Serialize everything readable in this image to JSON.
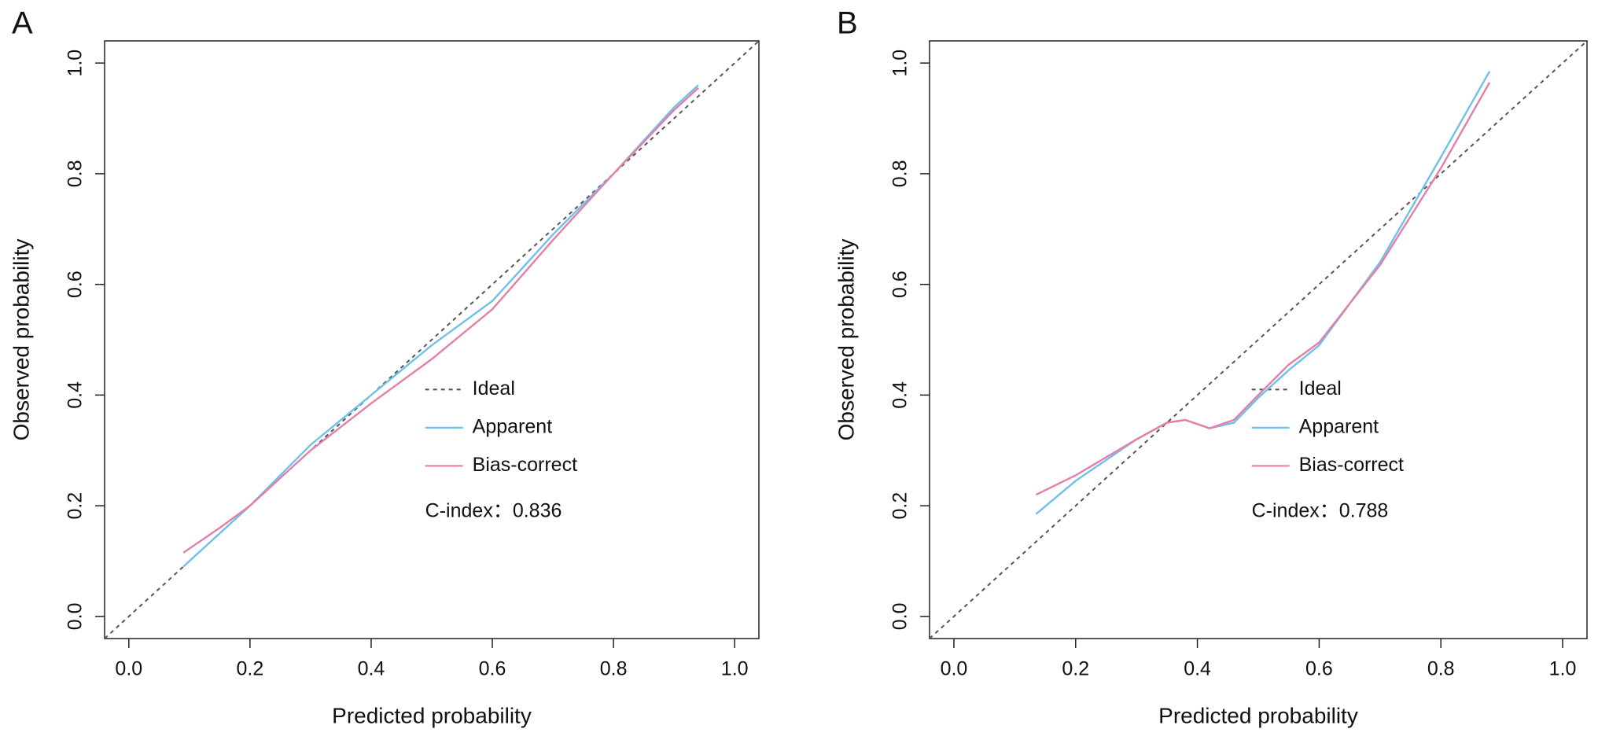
{
  "chart_data": [
    {
      "type": "line",
      "panel": "A",
      "xlabel": "Predicted probability",
      "ylabel": "Observed probability",
      "xlim": [
        -0.04,
        1.04
      ],
      "ylim": [
        -0.04,
        1.04
      ],
      "xticks": [
        {
          "value": 0,
          "label": "0.0"
        },
        0.2,
        0.4,
        0.6,
        0.8,
        {
          "value": 1,
          "label": "1.0"
        }
      ],
      "yticks": [
        {
          "value": 0,
          "label": "0.0"
        },
        0.2,
        0.4,
        0.6,
        0.8,
        {
          "value": 1,
          "label": "1.0"
        }
      ],
      "legend": "lower right",
      "annotation": "C-index：0.836",
      "series": [
        {
          "name": "Ideal",
          "color": "#555555",
          "dashed": true,
          "x": [
            -0.04,
            1.04
          ],
          "values": [
            -0.04,
            1.04
          ]
        },
        {
          "name": "Apparent",
          "color": "#6ec1ea",
          "x": [
            0.09,
            0.15,
            0.2,
            0.3,
            0.4,
            0.5,
            0.6,
            0.7,
            0.8,
            0.9,
            0.94
          ],
          "values": [
            0.09,
            0.15,
            0.2,
            0.31,
            0.4,
            0.49,
            0.57,
            0.69,
            0.8,
            0.92,
            0.96
          ]
        },
        {
          "name": "Bias-correct",
          "color": "#e57fa8",
          "x": [
            0.09,
            0.15,
            0.2,
            0.3,
            0.4,
            0.5,
            0.6,
            0.7,
            0.8,
            0.9,
            0.94
          ],
          "values": [
            0.115,
            0.16,
            0.2,
            0.3,
            0.385,
            0.465,
            0.555,
            0.68,
            0.8,
            0.915,
            0.955
          ]
        }
      ]
    },
    {
      "type": "line",
      "panel": "B",
      "xlabel": "Predicted probability",
      "ylabel": "Observed probability",
      "xlim": [
        -0.04,
        1.04
      ],
      "ylim": [
        -0.04,
        1.04
      ],
      "xticks": [
        {
          "value": 0,
          "label": "0.0"
        },
        0.2,
        0.4,
        0.6,
        0.8,
        {
          "value": 1,
          "label": "1.0"
        }
      ],
      "yticks": [
        {
          "value": 0,
          "label": "0.0"
        },
        0.2,
        0.4,
        0.6,
        0.8,
        {
          "value": 1,
          "label": "1.0"
        }
      ],
      "legend": "lower right",
      "annotation": "C-index：0.788",
      "series": [
        {
          "name": "Ideal",
          "color": "#555555",
          "dashed": true,
          "x": [
            -0.04,
            1.04
          ],
          "values": [
            -0.04,
            1.04
          ]
        },
        {
          "name": "Apparent",
          "color": "#6ec1ea",
          "x": [
            0.135,
            0.2,
            0.3,
            0.35,
            0.38,
            0.42,
            0.46,
            0.5,
            0.55,
            0.6,
            0.7,
            0.8,
            0.88
          ],
          "values": [
            0.185,
            0.245,
            0.32,
            0.35,
            0.355,
            0.34,
            0.35,
            0.395,
            0.445,
            0.49,
            0.64,
            0.83,
            0.985
          ]
        },
        {
          "name": "Bias-correct",
          "color": "#e57fa8",
          "x": [
            0.135,
            0.2,
            0.3,
            0.35,
            0.38,
            0.42,
            0.46,
            0.5,
            0.55,
            0.6,
            0.7,
            0.8,
            0.88
          ],
          "values": [
            0.22,
            0.255,
            0.32,
            0.35,
            0.355,
            0.34,
            0.355,
            0.4,
            0.455,
            0.495,
            0.635,
            0.81,
            0.965
          ]
        }
      ]
    }
  ]
}
